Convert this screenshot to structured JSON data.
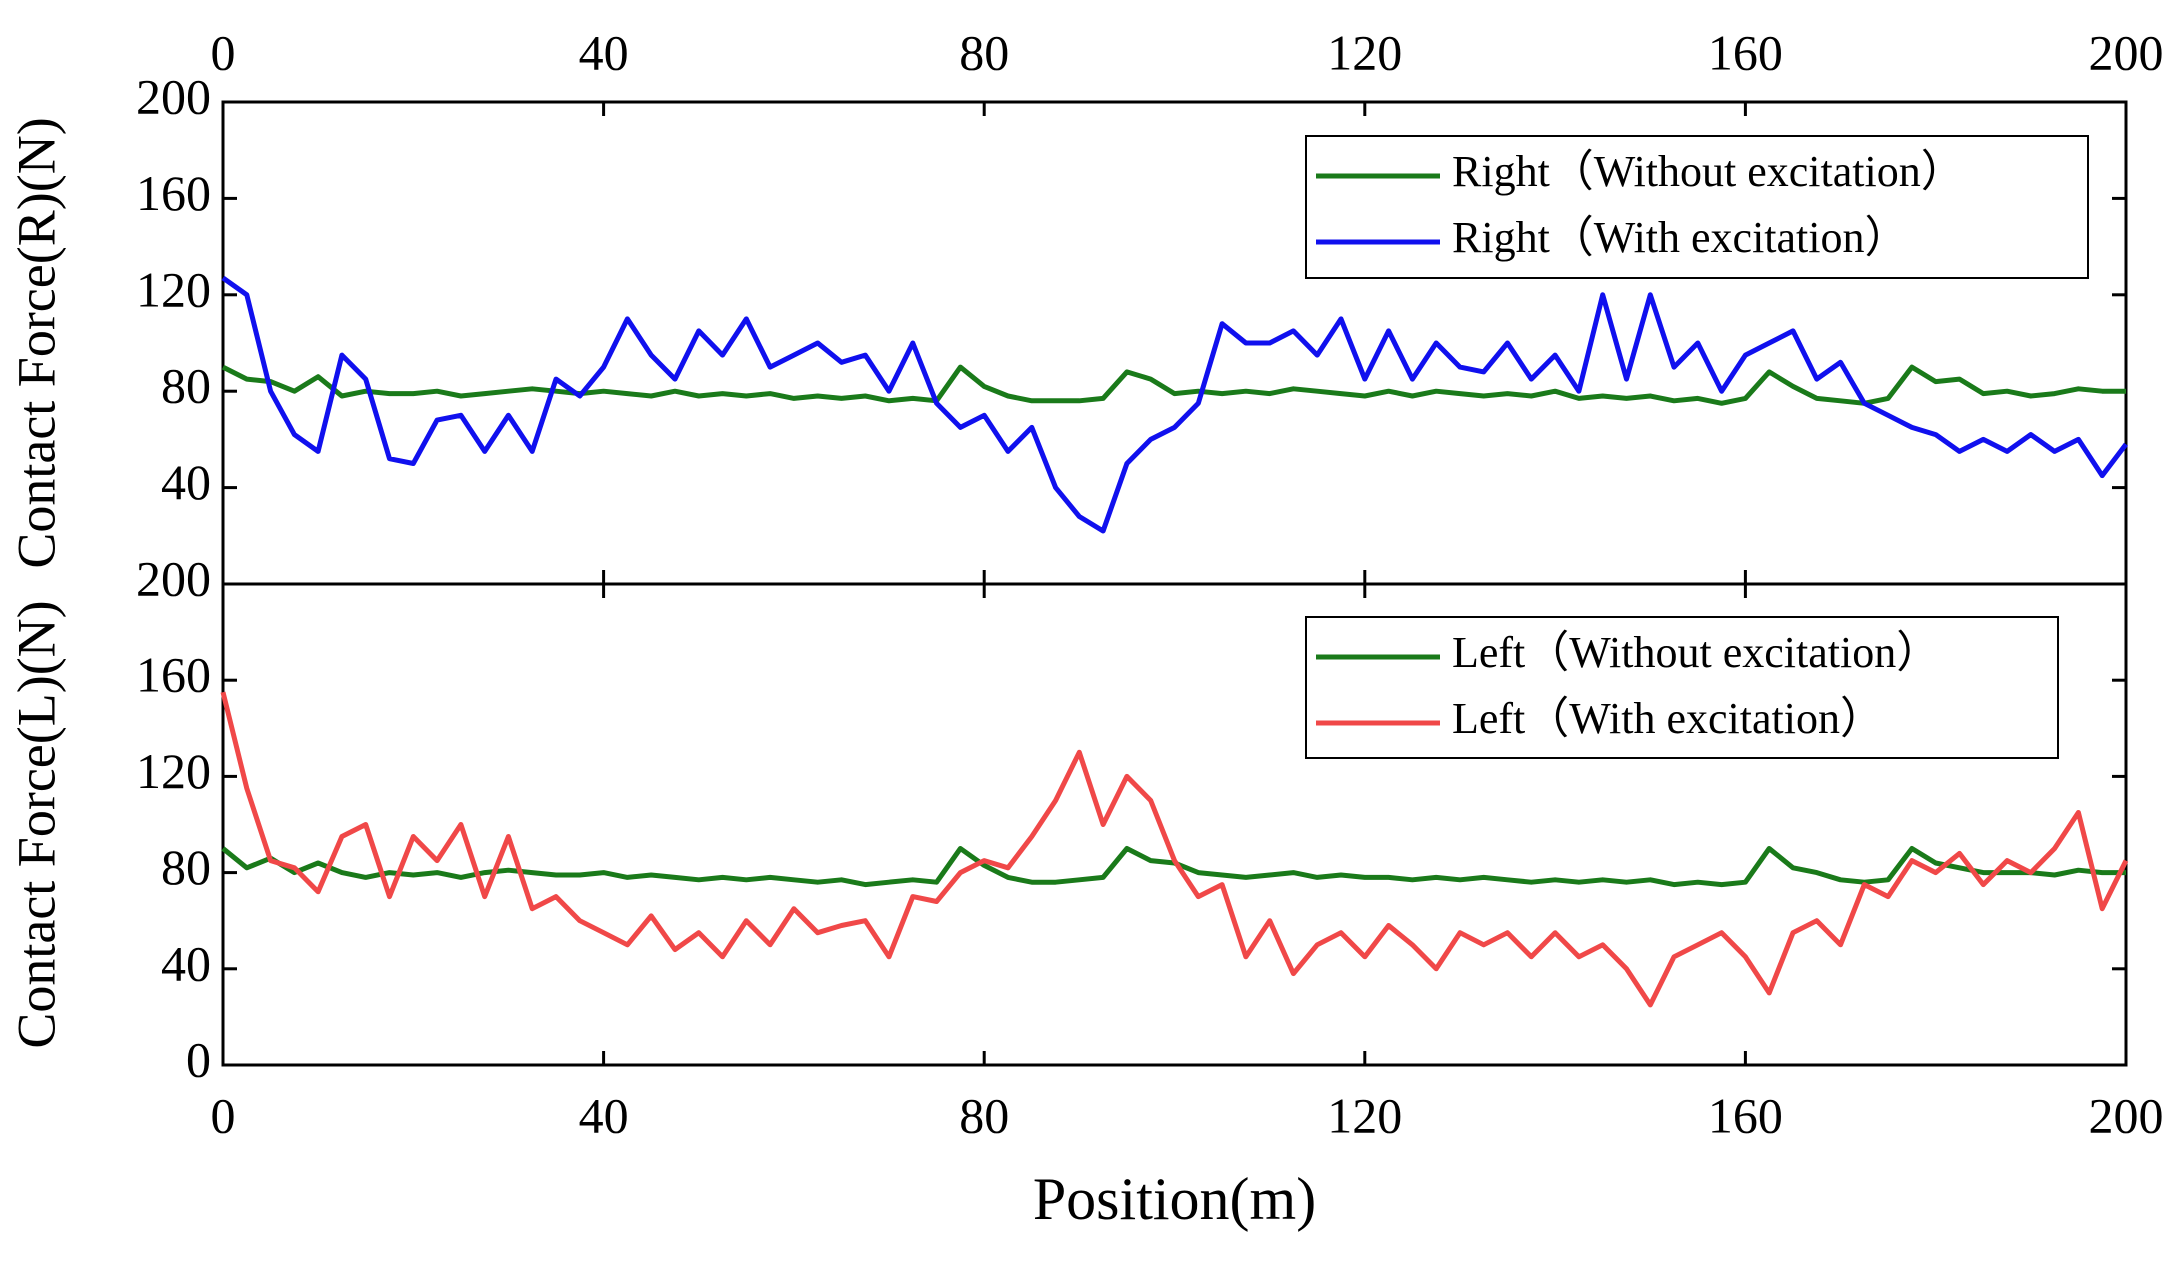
{
  "chart_data": [
    {
      "type": "line",
      "ylabel": "Contact Force(R)(N)",
      "xaxis": "top",
      "legend": "upper right",
      "xlim": [
        0,
        200
      ],
      "xticks": [
        0,
        40,
        80,
        120,
        160,
        200
      ],
      "ylim": [
        0,
        200
      ],
      "yticks": [
        40,
        80,
        120,
        160,
        200
      ],
      "x": [
        0,
        2.5,
        5,
        7.5,
        10,
        12.5,
        15,
        17.5,
        20,
        22.5,
        25,
        27.5,
        30,
        32.5,
        35,
        37.5,
        40,
        42.5,
        45,
        47.5,
        50,
        52.5,
        55,
        57.5,
        60,
        62.5,
        65,
        67.5,
        70,
        72.5,
        75,
        77.5,
        80,
        82.5,
        85,
        87.5,
        90,
        92.5,
        95,
        97.5,
        100,
        102.5,
        105,
        107.5,
        110,
        112.5,
        115,
        117.5,
        120,
        122.5,
        125,
        127.5,
        130,
        132.5,
        135,
        137.5,
        140,
        142.5,
        145,
        147.5,
        150,
        152.5,
        155,
        157.5,
        160,
        162.5,
        165,
        167.5,
        170,
        172.5,
        175,
        177.5,
        180,
        182.5,
        185,
        187.5,
        190,
        192.5,
        195,
        197.5,
        200
      ],
      "series": [
        {
          "name": "Right（Without excitation）",
          "color": "#1a7a1a",
          "values": [
            90,
            85,
            84,
            80,
            86,
            78,
            80,
            79,
            79,
            80,
            78,
            79,
            80,
            81,
            80,
            79,
            80,
            79,
            78,
            80,
            78,
            79,
            78,
            79,
            77,
            78,
            77,
            78,
            76,
            77,
            76,
            90,
            82,
            78,
            76,
            76,
            76,
            77,
            88,
            85,
            79,
            80,
            79,
            80,
            79,
            81,
            80,
            79,
            78,
            80,
            78,
            80,
            79,
            78,
            79,
            78,
            80,
            77,
            78,
            77,
            78,
            76,
            77,
            75,
            77,
            88,
            82,
            77,
            76,
            75,
            77,
            90,
            84,
            85,
            79,
            80,
            78,
            79,
            81,
            80,
            80
          ]
        },
        {
          "name": "Right（With excitation）",
          "color": "#1010ee",
          "values": [
            127,
            120,
            80,
            62,
            55,
            95,
            85,
            52,
            50,
            68,
            70,
            55,
            70,
            55,
            85,
            78,
            90,
            110,
            95,
            85,
            105,
            95,
            110,
            90,
            95,
            100,
            92,
            95,
            80,
            100,
            75,
            65,
            70,
            55,
            65,
            40,
            28,
            22,
            50,
            60,
            65,
            75,
            108,
            100,
            100,
            105,
            95,
            110,
            85,
            105,
            85,
            100,
            90,
            88,
            100,
            85,
            95,
            80,
            120,
            85,
            120,
            90,
            100,
            80,
            95,
            100,
            105,
            85,
            92,
            75,
            70,
            65,
            62,
            55,
            60,
            55,
            62,
            55,
            60,
            45,
            58
          ]
        }
      ]
    },
    {
      "type": "line",
      "ylabel": "Contact Force(L)(N)",
      "xlabel": "Position(m)",
      "xaxis": "bottom",
      "legend": "upper right",
      "xlim": [
        0,
        200
      ],
      "xticks": [
        0,
        40,
        80,
        120,
        160,
        200
      ],
      "ylim": [
        0,
        200
      ],
      "yticks": [
        0,
        40,
        80,
        120,
        160,
        200
      ],
      "x": [
        0,
        2.5,
        5,
        7.5,
        10,
        12.5,
        15,
        17.5,
        20,
        22.5,
        25,
        27.5,
        30,
        32.5,
        35,
        37.5,
        40,
        42.5,
        45,
        47.5,
        50,
        52.5,
        55,
        57.5,
        60,
        62.5,
        65,
        67.5,
        70,
        72.5,
        75,
        77.5,
        80,
        82.5,
        85,
        87.5,
        90,
        92.5,
        95,
        97.5,
        100,
        102.5,
        105,
        107.5,
        110,
        112.5,
        115,
        117.5,
        120,
        122.5,
        125,
        127.5,
        130,
        132.5,
        135,
        137.5,
        140,
        142.5,
        145,
        147.5,
        150,
        152.5,
        155,
        157.5,
        160,
        162.5,
        165,
        167.5,
        170,
        172.5,
        175,
        177.5,
        180,
        182.5,
        185,
        187.5,
        190,
        192.5,
        195,
        197.5,
        200
      ],
      "series": [
        {
          "name": "Left（Without excitation）",
          "color": "#1a7a1a",
          "values": [
            90,
            82,
            86,
            80,
            84,
            80,
            78,
            80,
            79,
            80,
            78,
            80,
            81,
            80,
            79,
            79,
            80,
            78,
            79,
            78,
            77,
            78,
            77,
            78,
            77,
            76,
            77,
            75,
            76,
            77,
            76,
            90,
            83,
            78,
            76,
            76,
            77,
            78,
            90,
            85,
            84,
            80,
            79,
            78,
            79,
            80,
            78,
            79,
            78,
            78,
            77,
            78,
            77,
            78,
            77,
            76,
            77,
            76,
            77,
            76,
            77,
            75,
            76,
            75,
            76,
            90,
            82,
            80,
            77,
            76,
            77,
            90,
            84,
            82,
            80,
            80,
            80,
            79,
            81,
            80,
            80
          ]
        },
        {
          "name": "Left（With excitation）",
          "color": "#f04848",
          "values": [
            155,
            115,
            85,
            82,
            72,
            95,
            100,
            70,
            95,
            85,
            100,
            70,
            95,
            65,
            70,
            60,
            55,
            50,
            62,
            48,
            55,
            45,
            60,
            50,
            65,
            55,
            58,
            60,
            45,
            70,
            68,
            80,
            85,
            82,
            95,
            110,
            130,
            100,
            120,
            110,
            85,
            70,
            75,
            45,
            60,
            38,
            50,
            55,
            45,
            58,
            50,
            40,
            55,
            50,
            55,
            45,
            55,
            45,
            50,
            40,
            25,
            45,
            50,
            55,
            45,
            30,
            55,
            60,
            50,
            75,
            70,
            85,
            80,
            88,
            75,
            85,
            80,
            90,
            105,
            65,
            85
          ]
        }
      ]
    }
  ]
}
